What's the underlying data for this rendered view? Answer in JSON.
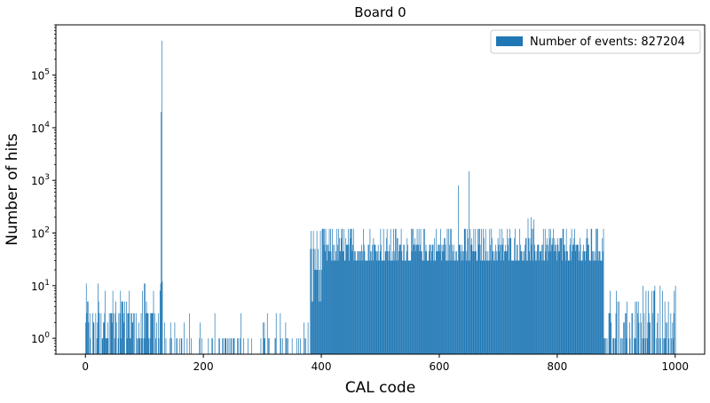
{
  "chart_data": {
    "type": "bar",
    "title": "Board 0",
    "xlabel": "CAL code",
    "ylabel": "Number of hits",
    "log_y": true,
    "xlim": [
      -50,
      1050
    ],
    "ylim": [
      0.5,
      900000
    ],
    "x_ticks": [
      0,
      200,
      400,
      600,
      800,
      1000
    ],
    "x_tick_labels": [
      "0",
      "200",
      "400",
      "600",
      "800",
      "1000"
    ],
    "y_ticks": [
      1,
      10,
      100,
      1000,
      10000,
      100000
    ],
    "y_tick_base": "10",
    "y_tick_exponents": [
      "0",
      "1",
      "2",
      "3",
      "4",
      "5"
    ],
    "grid": false,
    "legend": {
      "label": "Number of events: 827204",
      "position": "top-right"
    },
    "bar_color": "#1f77b4",
    "bin_width": 1,
    "bin_range": [
      0,
      1000
    ],
    "segments": [
      {
        "range": [
          0,
          127
        ],
        "levels": [
          1,
          2,
          3,
          5,
          8,
          11
        ],
        "weights": [
          0.25,
          0.15,
          0.35,
          0.15,
          0.07,
          0.03
        ],
        "fill": 0.75
      },
      {
        "range": [
          128,
          128
        ],
        "levels": [
          20000
        ],
        "weights": [
          1
        ],
        "fill": 1
      },
      {
        "range": [
          129,
          129
        ],
        "levels": [
          450000
        ],
        "weights": [
          1
        ],
        "fill": 1
      },
      {
        "range": [
          130,
          130
        ],
        "levels": [
          12
        ],
        "weights": [
          1
        ],
        "fill": 1
      },
      {
        "range": [
          131,
          380
        ],
        "levels": [
          1,
          2,
          3
        ],
        "weights": [
          0.8,
          0.12,
          0.08
        ],
        "fill": 0.28
      },
      {
        "range": [
          381,
          400
        ],
        "levels": [
          5,
          20,
          50,
          110
        ],
        "weights": [
          0.25,
          0.3,
          0.25,
          0.2
        ],
        "fill": 1
      },
      {
        "range": [
          401,
          878
        ],
        "levels": [
          30,
          45,
          60,
          80,
          120
        ],
        "weights": [
          0.3,
          0.25,
          0.2,
          0.1,
          0.15
        ],
        "fill": 1
      },
      {
        "range": [
          879,
          1000
        ],
        "levels": [
          1,
          2,
          3,
          5,
          8,
          10
        ],
        "weights": [
          0.3,
          0.2,
          0.25,
          0.12,
          0.08,
          0.05
        ],
        "fill": 0.7
      }
    ],
    "spikes": [
      {
        "x": 632,
        "y": 800
      },
      {
        "x": 650,
        "y": 1500
      },
      {
        "x": 750,
        "y": 190
      },
      {
        "x": 755,
        "y": 200
      },
      {
        "x": 760,
        "y": 180
      }
    ]
  }
}
